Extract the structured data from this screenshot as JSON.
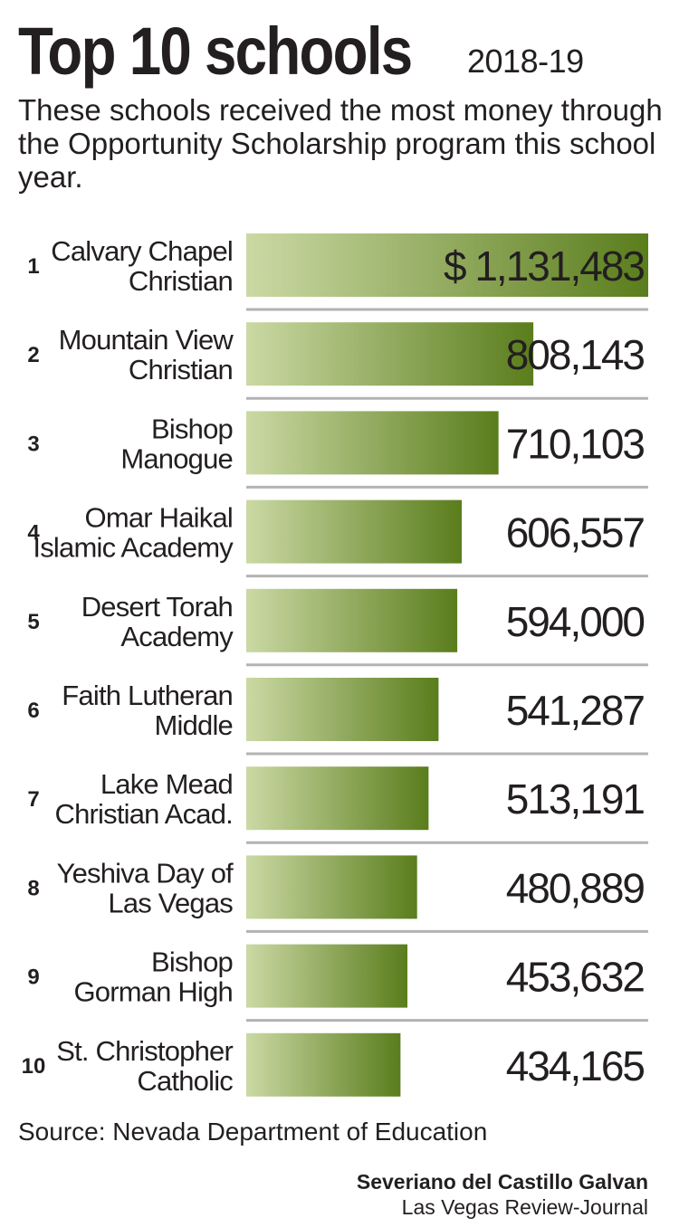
{
  "header": {
    "title": "Top 10 schools",
    "year": "2018-19",
    "subtitle": "These schools received the most money through the Opportunity Scholarship program this school year."
  },
  "chart_data": {
    "type": "bar",
    "orientation": "horizontal",
    "value_prefix_first": "$ ",
    "bar_gradient": [
      "#cbd9a4",
      "#5a7d1c"
    ],
    "rows": [
      {
        "rank": "1",
        "name_lines": [
          "Calvary Chapel",
          "Christian"
        ],
        "value": 1131483,
        "label": "1,131,483"
      },
      {
        "rank": "2",
        "name_lines": [
          "Mountain View",
          "Christian"
        ],
        "value": 808143,
        "label": "808,143"
      },
      {
        "rank": "3",
        "name_lines": [
          "Bishop",
          "Manogue"
        ],
        "value": 710103,
        "label": "710,103"
      },
      {
        "rank": "4",
        "name_lines": [
          "Omar Haikal",
          "Islamic Academy"
        ],
        "value": 606557,
        "label": "606,557"
      },
      {
        "rank": "5",
        "name_lines": [
          "Desert Torah",
          "Academy"
        ],
        "value": 594000,
        "label": "594,000"
      },
      {
        "rank": "6",
        "name_lines": [
          "Faith Lutheran",
          "Middle"
        ],
        "value": 541287,
        "label": "541,287"
      },
      {
        "rank": "7",
        "name_lines": [
          "Lake Mead",
          "Christian Acad."
        ],
        "value": 513191,
        "label": "513,191"
      },
      {
        "rank": "8",
        "name_lines": [
          "Yeshiva Day of",
          "Las Vegas"
        ],
        "value": 480889,
        "label": "480,889"
      },
      {
        "rank": "9",
        "name_lines": [
          "Bishop",
          "Gorman High"
        ],
        "value": 453632,
        "label": "453,632"
      },
      {
        "rank": "10",
        "name_lines": [
          "St. Christopher",
          "Catholic"
        ],
        "value": 434165,
        "label": "434,165"
      }
    ]
  },
  "footer": {
    "source": "Source: Nevada Department of Education",
    "credit_name": "Severiano del Castillo Galvan",
    "credit_org": "Las Vegas Review-Journal"
  }
}
